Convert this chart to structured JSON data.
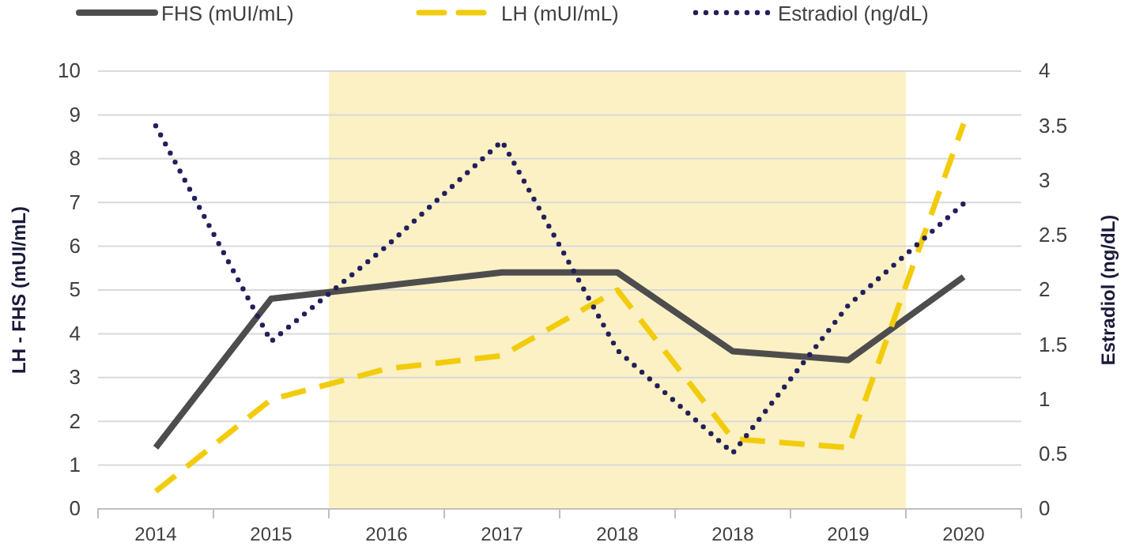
{
  "chart_data": {
    "type": "line",
    "ylabel": "LH - FHS (mUI/mL)",
    "y2label": "Estradiol (ng/dL)",
    "categories": [
      "2014",
      "2015",
      "2016",
      "2017",
      "2018",
      "2018",
      "2019",
      "2020"
    ],
    "series": [
      {
        "name": "FHS (mUI/mL)",
        "color": "#4d4d4d",
        "line_style": "solid",
        "values": [
          1.4,
          4.8,
          5.1,
          5.4,
          5.4,
          3.6,
          3.4,
          5.3
        ]
      },
      {
        "name": "LH (mUI/mL)",
        "color": "#f2cc0c",
        "line_style": "dashed",
        "values": [
          0.4,
          2.5,
          3.2,
          3.5,
          5.0,
          1.6,
          1.4,
          8.8
        ]
      },
      {
        "name": "Estradiol (ng/dL)",
        "color": "#231f5c",
        "line_style": "dotted",
        "axis": "y2",
        "values": [
          3.5,
          1.53,
          2.4,
          3.36,
          1.45,
          0.51,
          1.86,
          2.79
        ]
      }
    ],
    "ylim": [
      0,
      10
    ],
    "yticks": [
      0,
      1,
      2,
      3,
      4,
      5,
      6,
      7,
      8,
      9,
      10
    ],
    "y2lim": [
      0,
      4
    ],
    "y2ticks": [
      0,
      {
        "value": 0.5,
        "label": "0.5"
      },
      1,
      {
        "value": 1.5,
        "label": "1.5"
      },
      2,
      {
        "value": 2.5,
        "label": "2.5"
      },
      3,
      {
        "value": 3.5,
        "label": "3.5"
      },
      4
    ],
    "bands": [
      {
        "axis": "x",
        "from": "2016",
        "to": "2019",
        "color": "#fbf1c4"
      }
    ],
    "grid": "y",
    "legend": "top",
    "marker": "none"
  }
}
